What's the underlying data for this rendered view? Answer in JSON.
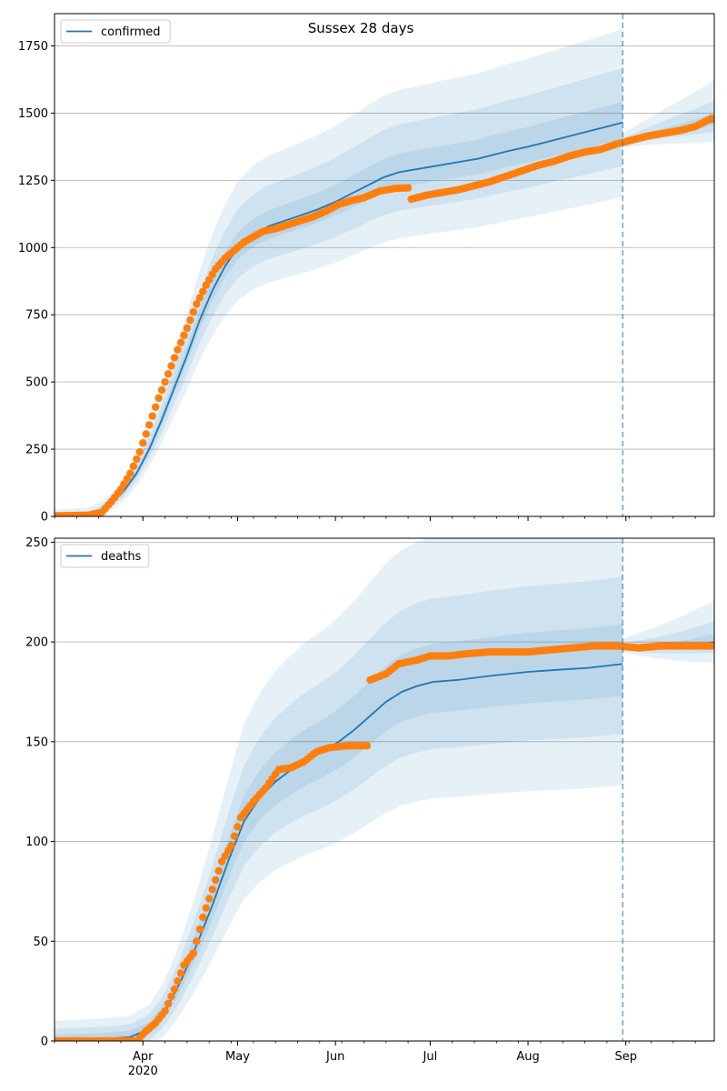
{
  "figure": {
    "title": "Sussex 28 days"
  },
  "colors": {
    "line": "#1f77b4",
    "points": "#ff7f0e",
    "band": "#1f77b4",
    "grid": "#b0b0b0"
  },
  "chart_data": [
    {
      "type": "line",
      "panel": "confirmed",
      "title": "Sussex 28 days",
      "xlabel": "",
      "ylabel": "",
      "ylim": [
        0,
        1870
      ],
      "xlim": [
        "2020-03-04",
        "2020-09-29"
      ],
      "yticks": [
        0,
        250,
        500,
        750,
        1000,
        1250,
        1500,
        1750
      ],
      "xticks": [
        {
          "date": "2020-04-01",
          "label": "Apr",
          "sub": "2020"
        },
        {
          "date": "2020-05-01",
          "label": "May",
          "sub": ""
        },
        {
          "date": "2020-06-01",
          "label": "Jun",
          "sub": ""
        },
        {
          "date": "2020-07-01",
          "label": "Jul",
          "sub": ""
        },
        {
          "date": "2020-08-01",
          "label": "Aug",
          "sub": ""
        },
        {
          "date": "2020-09-01",
          "label": "Sep",
          "sub": ""
        }
      ],
      "grid": "horizontal",
      "legend": {
        "position": "top-left",
        "entries": [
          "confirmed"
        ]
      },
      "vline_date": "2020-08-31",
      "series": [
        {
          "name": "confirmed",
          "kind": "model-median",
          "x": [
            "2020-03-04",
            "2020-03-14",
            "2020-03-18",
            "2020-03-22",
            "2020-03-26",
            "2020-03-30",
            "2020-04-03",
            "2020-04-07",
            "2020-04-11",
            "2020-04-15",
            "2020-04-19",
            "2020-04-23",
            "2020-04-27",
            "2020-05-01",
            "2020-05-06",
            "2020-05-11",
            "2020-05-16",
            "2020-05-21",
            "2020-05-26",
            "2020-06-01",
            "2020-06-06",
            "2020-06-11",
            "2020-06-16",
            "2020-06-21",
            "2020-06-26",
            "2020-07-01",
            "2020-07-06",
            "2020-07-11",
            "2020-07-16",
            "2020-07-21",
            "2020-07-26",
            "2020-08-01",
            "2020-08-06",
            "2020-08-11",
            "2020-08-16",
            "2020-08-21",
            "2020-08-26",
            "2020-08-31"
          ],
          "values": [
            0,
            5,
            20,
            50,
            95,
            160,
            250,
            360,
            480,
            600,
            730,
            840,
            930,
            1000,
            1050,
            1080,
            1100,
            1120,
            1140,
            1170,
            1200,
            1230,
            1260,
            1280,
            1290,
            1300,
            1310,
            1320,
            1330,
            1345,
            1360,
            1375,
            1390,
            1405,
            1420,
            1435,
            1450,
            1465
          ]
        },
        {
          "name": "observed",
          "kind": "points",
          "x": [
            "2020-03-04",
            "2020-03-10",
            "2020-03-15",
            "2020-03-19",
            "2020-03-22",
            "2020-03-25",
            "2020-03-28",
            "2020-03-31",
            "2020-04-03",
            "2020-04-06",
            "2020-04-09",
            "2020-04-12",
            "2020-04-15",
            "2020-04-18",
            "2020-04-21",
            "2020-04-24",
            "2020-04-27",
            "2020-04-30",
            "2020-05-03",
            "2020-05-06",
            "2020-05-09",
            "2020-05-13",
            "2020-05-17",
            "2020-05-21",
            "2020-05-25",
            "2020-05-29",
            "2020-06-02",
            "2020-06-06",
            "2020-06-10",
            "2020-06-15",
            "2020-06-20",
            "2020-06-24",
            "2020-06-25",
            "2020-06-30",
            "2020-07-05",
            "2020-07-10",
            "2020-07-15",
            "2020-07-20",
            "2020-07-25",
            "2020-07-30",
            "2020-08-04",
            "2020-08-09",
            "2020-08-14",
            "2020-08-19",
            "2020-08-24",
            "2020-08-29",
            "2020-09-03",
            "2020-09-08",
            "2020-09-13",
            "2020-09-18",
            "2020-09-23",
            "2020-09-28"
          ],
          "values": [
            2,
            3,
            5,
            15,
            55,
            100,
            160,
            240,
            340,
            440,
            530,
            620,
            700,
            790,
            860,
            920,
            960,
            990,
            1020,
            1040,
            1060,
            1070,
            1085,
            1100,
            1115,
            1135,
            1160,
            1175,
            1185,
            1210,
            1220,
            1222,
            1180,
            1195,
            1205,
            1215,
            1230,
            1245,
            1265,
            1285,
            1305,
            1320,
            1340,
            1355,
            1365,
            1385,
            1400,
            1415,
            1425,
            1435,
            1450,
            1480
          ]
        },
        {
          "name": "forecast",
          "kind": "model-median",
          "x": [
            "2020-08-31",
            "2020-09-05",
            "2020-09-10",
            "2020-09-15",
            "2020-09-20",
            "2020-09-25",
            "2020-09-29"
          ],
          "values": [
            1390,
            1405,
            1420,
            1432,
            1445,
            1458,
            1470
          ]
        }
      ]
    },
    {
      "type": "line",
      "panel": "deaths",
      "title": "",
      "xlabel": "",
      "ylabel": "",
      "ylim": [
        0,
        252
      ],
      "xlim": [
        "2020-03-04",
        "2020-09-29"
      ],
      "yticks": [
        0,
        50,
        100,
        150,
        200,
        250
      ],
      "xticks": [
        {
          "date": "2020-04-01",
          "label": "Apr",
          "sub": "2020"
        },
        {
          "date": "2020-05-01",
          "label": "May",
          "sub": ""
        },
        {
          "date": "2020-06-01",
          "label": "Jun",
          "sub": ""
        },
        {
          "date": "2020-07-01",
          "label": "Jul",
          "sub": ""
        },
        {
          "date": "2020-08-01",
          "label": "Aug",
          "sub": ""
        },
        {
          "date": "2020-09-01",
          "label": "Sep",
          "sub": ""
        }
      ],
      "grid": "horizontal",
      "legend": {
        "position": "top-left",
        "entries": [
          "deaths"
        ]
      },
      "vline_date": "2020-08-31",
      "series": [
        {
          "name": "deaths",
          "kind": "model-median",
          "x": [
            "2020-03-04",
            "2020-03-20",
            "2020-03-28",
            "2020-04-03",
            "2020-04-08",
            "2020-04-13",
            "2020-04-18",
            "2020-04-23",
            "2020-04-28",
            "2020-05-03",
            "2020-05-08",
            "2020-05-13",
            "2020-05-18",
            "2020-05-23",
            "2020-05-28",
            "2020-06-02",
            "2020-06-07",
            "2020-06-12",
            "2020-06-17",
            "2020-06-22",
            "2020-06-27",
            "2020-07-02",
            "2020-07-10",
            "2020-07-20",
            "2020-08-01",
            "2020-08-10",
            "2020-08-20",
            "2020-08-31"
          ],
          "values": [
            0,
            1,
            2,
            6,
            15,
            30,
            48,
            68,
            90,
            110,
            122,
            130,
            136,
            141,
            145,
            150,
            156,
            163,
            170,
            175,
            178,
            180,
            181,
            183,
            185,
            186,
            187,
            189
          ]
        },
        {
          "name": "observed",
          "kind": "points",
          "x": [
            "2020-03-04",
            "2020-03-20",
            "2020-03-30",
            "2020-04-02",
            "2020-04-05",
            "2020-04-08",
            "2020-04-11",
            "2020-04-14",
            "2020-04-17",
            "2020-04-20",
            "2020-04-23",
            "2020-04-26",
            "2020-04-29",
            "2020-05-02",
            "2020-05-06",
            "2020-05-10",
            "2020-05-14",
            "2020-05-18",
            "2020-05-22",
            "2020-05-26",
            "2020-05-30",
            "2020-06-05",
            "2020-06-11",
            "2020-06-12",
            "2020-06-17",
            "2020-06-21",
            "2020-06-27",
            "2020-07-01",
            "2020-07-07",
            "2020-07-12",
            "2020-07-20",
            "2020-08-01",
            "2020-08-08",
            "2020-08-15",
            "2020-08-22",
            "2020-08-29",
            "2020-09-05",
            "2020-09-12",
            "2020-09-19",
            "2020-09-28"
          ],
          "values": [
            0,
            0,
            0,
            5,
            9,
            15,
            26,
            38,
            44,
            62,
            76,
            90,
            98,
            112,
            120,
            127,
            136,
            137,
            140,
            145,
            147,
            148,
            148,
            181,
            184,
            189,
            191,
            193,
            193,
            194,
            195,
            195,
            196,
            197,
            198,
            198,
            197,
            198,
            198,
            198
          ]
        },
        {
          "name": "forecast",
          "kind": "model-median",
          "x": [
            "2020-08-31",
            "2020-09-10",
            "2020-09-20",
            "2020-09-29"
          ],
          "values": [
            197,
            197,
            198,
            200
          ]
        }
      ]
    }
  ]
}
